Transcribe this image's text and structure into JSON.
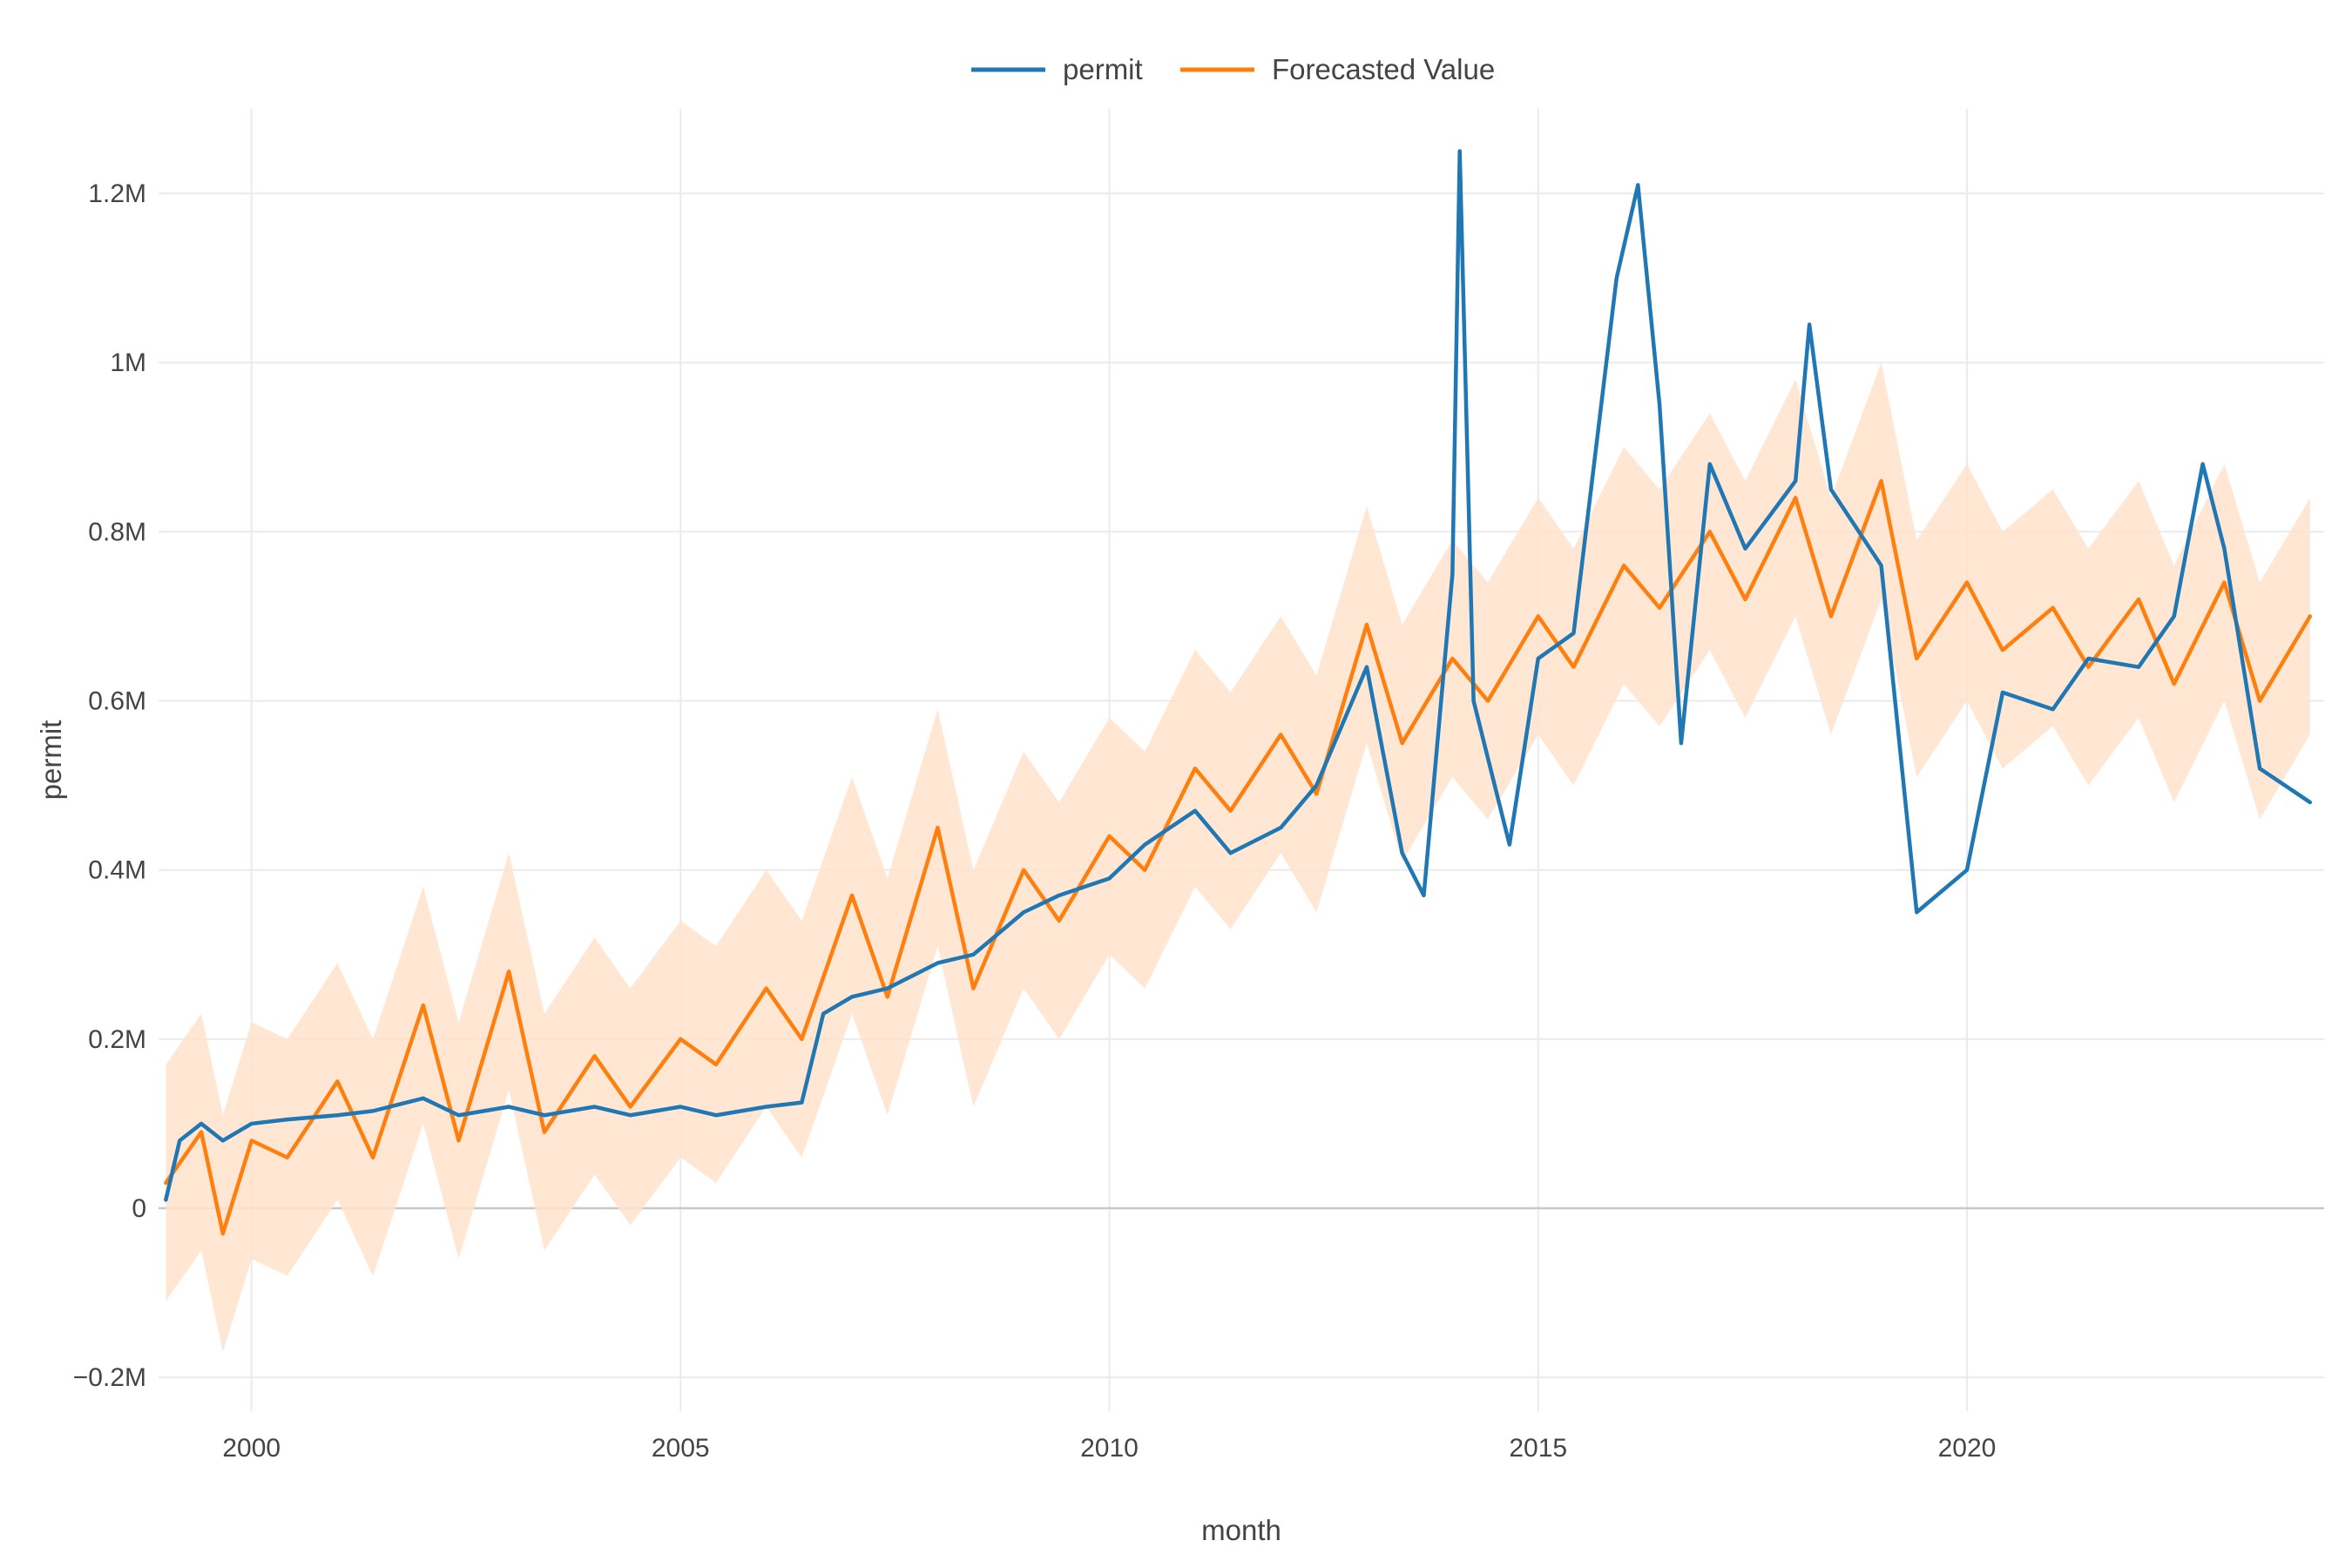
{
  "chart_data": {
    "type": "line",
    "xlabel": "month",
    "ylabel": "permit",
    "xlim": [
      "1998-12-01",
      "2024-03-01"
    ],
    "ylim": [
      -240000,
      1300000
    ],
    "x_ticks": [
      {
        "date": "2000-01-01",
        "label": "2000"
      },
      {
        "date": "2005-01-01",
        "label": "2005"
      },
      {
        "date": "2010-01-01",
        "label": "2010"
      },
      {
        "date": "2015-01-01",
        "label": "2015"
      },
      {
        "date": "2020-01-01",
        "label": "2020"
      }
    ],
    "y_ticks": [
      {
        "value": -200000,
        "label": "−0.2M"
      },
      {
        "value": 0,
        "label": "0"
      },
      {
        "value": 200000,
        "label": "0.2M"
      },
      {
        "value": 400000,
        "label": "0.4M"
      },
      {
        "value": 600000,
        "label": "0.6M"
      },
      {
        "value": 800000,
        "label": "0.8M"
      },
      {
        "value": 1000000,
        "label": "1M"
      },
      {
        "value": 1200000,
        "label": "1.2M"
      }
    ],
    "grid": true,
    "zero_line": true,
    "legend_position": "top-center",
    "colors": {
      "permit": "#1f77b4",
      "forecast": "#ff7f0e",
      "band": "#ffe3cc",
      "grid": "#ebebeb",
      "zero": "#c8c8c8"
    },
    "series": [
      {
        "name": "permit",
        "points": [
          [
            "1999-01-01",
            10000
          ],
          [
            "1999-03-01",
            80000
          ],
          [
            "1999-06-01",
            100000
          ],
          [
            "1999-09-01",
            80000
          ],
          [
            "2000-01-01",
            100000
          ],
          [
            "2000-06-01",
            105000
          ],
          [
            "2001-01-01",
            110000
          ],
          [
            "2001-06-01",
            115000
          ],
          [
            "2002-01-01",
            130000
          ],
          [
            "2002-06-01",
            110000
          ],
          [
            "2003-01-01",
            120000
          ],
          [
            "2003-06-01",
            110000
          ],
          [
            "2004-01-01",
            120000
          ],
          [
            "2004-06-01",
            110000
          ],
          [
            "2005-01-01",
            120000
          ],
          [
            "2005-06-01",
            110000
          ],
          [
            "2006-01-01",
            120000
          ],
          [
            "2006-06-01",
            125000
          ],
          [
            "2006-09-01",
            230000
          ],
          [
            "2007-01-01",
            250000
          ],
          [
            "2007-06-01",
            260000
          ],
          [
            "2008-01-01",
            290000
          ],
          [
            "2008-06-01",
            300000
          ],
          [
            "2009-01-01",
            350000
          ],
          [
            "2009-06-01",
            370000
          ],
          [
            "2010-01-01",
            390000
          ],
          [
            "2010-06-01",
            430000
          ],
          [
            "2011-01-01",
            470000
          ],
          [
            "2011-06-01",
            420000
          ],
          [
            "2012-01-01",
            450000
          ],
          [
            "2012-06-01",
            500000
          ],
          [
            "2013-01-01",
            640000
          ],
          [
            "2013-06-01",
            420000
          ],
          [
            "2013-09-01",
            370000
          ],
          [
            "2014-01-01",
            750000
          ],
          [
            "2014-02-01",
            1250000
          ],
          [
            "2014-04-01",
            600000
          ],
          [
            "2014-09-01",
            430000
          ],
          [
            "2015-01-01",
            650000
          ],
          [
            "2015-06-01",
            680000
          ],
          [
            "2015-12-01",
            1100000
          ],
          [
            "2016-03-01",
            1210000
          ],
          [
            "2016-06-01",
            950000
          ],
          [
            "2016-09-01",
            550000
          ],
          [
            "2017-01-01",
            880000
          ],
          [
            "2017-06-01",
            780000
          ],
          [
            "2018-01-01",
            860000
          ],
          [
            "2018-03-01",
            1045000
          ],
          [
            "2018-06-01",
            850000
          ],
          [
            "2019-01-01",
            760000
          ],
          [
            "2019-06-01",
            350000
          ],
          [
            "2020-01-01",
            400000
          ],
          [
            "2020-06-01",
            610000
          ],
          [
            "2021-01-01",
            590000
          ],
          [
            "2021-06-01",
            650000
          ],
          [
            "2022-01-01",
            640000
          ],
          [
            "2022-06-01",
            700000
          ],
          [
            "2022-10-01",
            880000
          ],
          [
            "2023-01-01",
            780000
          ],
          [
            "2023-06-01",
            520000
          ],
          [
            "2024-01-01",
            480000
          ]
        ]
      },
      {
        "name": "Forecasted Value",
        "points": [
          [
            "1999-01-01",
            30000
          ],
          [
            "1999-06-01",
            90000
          ],
          [
            "1999-09-01",
            -30000
          ],
          [
            "2000-01-01",
            80000
          ],
          [
            "2000-06-01",
            60000
          ],
          [
            "2001-01-01",
            150000
          ],
          [
            "2001-06-01",
            60000
          ],
          [
            "2002-01-01",
            240000
          ],
          [
            "2002-06-01",
            80000
          ],
          [
            "2003-01-01",
            280000
          ],
          [
            "2003-06-01",
            90000
          ],
          [
            "2004-01-01",
            180000
          ],
          [
            "2004-06-01",
            120000
          ],
          [
            "2005-01-01",
            200000
          ],
          [
            "2005-06-01",
            170000
          ],
          [
            "2006-01-01",
            260000
          ],
          [
            "2006-06-01",
            200000
          ],
          [
            "2007-01-01",
            370000
          ],
          [
            "2007-06-01",
            250000
          ],
          [
            "2008-01-01",
            450000
          ],
          [
            "2008-06-01",
            260000
          ],
          [
            "2009-01-01",
            400000
          ],
          [
            "2009-06-01",
            340000
          ],
          [
            "2010-01-01",
            440000
          ],
          [
            "2010-06-01",
            400000
          ],
          [
            "2011-01-01",
            520000
          ],
          [
            "2011-06-01",
            470000
          ],
          [
            "2012-01-01",
            560000
          ],
          [
            "2012-06-01",
            490000
          ],
          [
            "2013-01-01",
            690000
          ],
          [
            "2013-06-01",
            550000
          ],
          [
            "2014-01-01",
            650000
          ],
          [
            "2014-06-01",
            600000
          ],
          [
            "2015-01-01",
            700000
          ],
          [
            "2015-06-01",
            640000
          ],
          [
            "2016-01-01",
            760000
          ],
          [
            "2016-06-01",
            710000
          ],
          [
            "2017-01-01",
            800000
          ],
          [
            "2017-06-01",
            720000
          ],
          [
            "2018-01-01",
            840000
          ],
          [
            "2018-06-01",
            700000
          ],
          [
            "2019-01-01",
            860000
          ],
          [
            "2019-06-01",
            650000
          ],
          [
            "2020-01-01",
            740000
          ],
          [
            "2020-06-01",
            660000
          ],
          [
            "2021-01-01",
            710000
          ],
          [
            "2021-06-01",
            640000
          ],
          [
            "2022-01-01",
            720000
          ],
          [
            "2022-06-01",
            620000
          ],
          [
            "2023-01-01",
            740000
          ],
          [
            "2023-06-01",
            600000
          ],
          [
            "2024-01-01",
            700000
          ]
        ]
      }
    ],
    "confidence_band": {
      "series": "Forecasted Value",
      "half_width": 140000
    }
  }
}
